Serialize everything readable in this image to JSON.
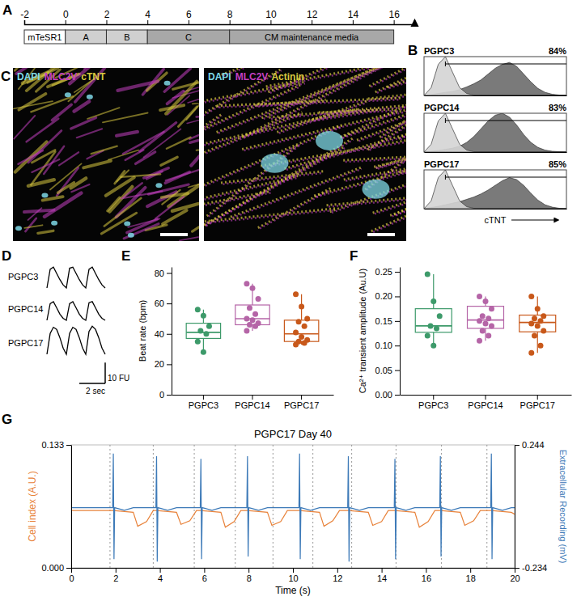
{
  "chart_data": [
    {
      "panel": "A",
      "type": "timeline",
      "xlim": [
        -2,
        17
      ],
      "xticks": [
        -2,
        0,
        2,
        4,
        6,
        8,
        10,
        12,
        14,
        16
      ],
      "segments": [
        {
          "label": "mTeSR1",
          "start": -2,
          "end": 0
        },
        {
          "label": "A",
          "start": 0,
          "end": 2
        },
        {
          "label": "B",
          "start": 2,
          "end": 4
        },
        {
          "label": "C",
          "start": 4,
          "end": 8
        },
        {
          "label": "CM maintenance media",
          "start": 8,
          "end": 16
        }
      ]
    },
    {
      "panel": "B",
      "type": "area",
      "x_label": "cTNT",
      "tick_labels": false,
      "xlim": [
        0,
        20
      ],
      "ylim": [
        0,
        100
      ],
      "x": [
        0,
        1,
        2,
        3,
        4,
        5,
        6,
        7,
        8,
        9,
        10,
        11,
        12,
        13,
        14,
        15,
        16,
        17,
        18,
        19,
        20
      ],
      "panels": [
        {
          "title": "PGPC3",
          "percent": {
            "value": 84,
            "label": "84%"
          },
          "gate": [
            3,
            20
          ],
          "series": [
            {
              "color": "#6b6b6b",
              "values": [
                0,
                2,
                5,
                8,
                10,
                15,
                22,
                30,
                40,
                55,
                70,
                80,
                85,
                75,
                55,
                35,
                18,
                8,
                3,
                1,
                0
              ]
            },
            {
              "color": "#d4d4d4",
              "values": [
                0,
                20,
                80,
                100,
                60,
                20,
                5,
                1,
                0,
                0,
                0,
                0,
                0,
                0,
                0,
                0,
                0,
                0,
                0,
                0,
                0
              ]
            }
          ]
        },
        {
          "title": "PGPC14",
          "percent": {
            "value": 83,
            "label": "83%"
          },
          "gate": [
            3,
            20
          ],
          "series": [
            {
              "color": "#6b6b6b",
              "values": [
                0,
                2,
                4,
                7,
                10,
                15,
                25,
                40,
                60,
                80,
                95,
                100,
                90,
                70,
                45,
                25,
                12,
                5,
                2,
                1,
                0
              ]
            },
            {
              "color": "#d4d4d4",
              "values": [
                0,
                20,
                80,
                100,
                60,
                20,
                5,
                1,
                0,
                0,
                0,
                0,
                0,
                0,
                0,
                0,
                0,
                0,
                0,
                0,
                0
              ]
            }
          ]
        },
        {
          "title": "PGPC17",
          "percent": {
            "value": 85,
            "label": "85%"
          },
          "gate": [
            3,
            20
          ],
          "series": [
            {
              "color": "#6b6b6b",
              "values": [
                0,
                3,
                6,
                10,
                14,
                18,
                24,
                30,
                38,
                48,
                60,
                72,
                80,
                75,
                60,
                40,
                22,
                10,
                4,
                1,
                0
              ]
            },
            {
              "color": "#d4d4d4",
              "values": [
                0,
                20,
                80,
                100,
                60,
                20,
                5,
                1,
                0,
                0,
                0,
                0,
                0,
                0,
                0,
                0,
                0,
                0,
                0,
                0,
                0
              ]
            }
          ]
        }
      ]
    },
    {
      "panel": "C",
      "type": "image",
      "images": [
        {
          "channels": [
            {
              "label": "DAPI",
              "color": "#7fd8e6"
            },
            {
              "label": "MLC2V",
              "color": "#c23fc0"
            },
            {
              "label": "cTNT",
              "color": "#d8c840"
            }
          ]
        },
        {
          "channels": [
            {
              "label": "DAPI",
              "color": "#7fd8e6"
            },
            {
              "label": "MLC2V",
              "color": "#c23fc0"
            },
            {
              "label": "Actinin",
              "color": "#d8c840"
            }
          ]
        }
      ]
    },
    {
      "panel": "D",
      "type": "line",
      "tick_labels": false,
      "xlim": [
        0,
        4.5
      ],
      "ylim": [
        0,
        14
      ],
      "x": [
        0,
        0.25,
        0.5,
        0.75,
        1,
        1.25,
        1.5,
        1.75,
        2,
        2.25,
        2.5,
        2.75,
        3,
        3.25,
        3.5,
        3.75,
        4,
        4.25,
        4.5
      ],
      "series": [
        {
          "name": "PGPC3",
          "color": "#000000",
          "values": [
            0,
            9,
            10,
            7,
            4,
            1.5,
            0,
            9.5,
            10,
            7,
            4,
            1.5,
            0,
            9,
            10,
            7,
            4,
            1.5,
            0
          ]
        },
        {
          "name": "PGPC14",
          "color": "#000000",
          "values": [
            0,
            8,
            9,
            6,
            3,
            1,
            0,
            8,
            9,
            6,
            3,
            1,
            0,
            8.5,
            9,
            6,
            3,
            1,
            0
          ]
        },
        {
          "name": "PGPC17",
          "color": "#000000",
          "values": [
            0,
            10,
            13,
            12,
            8,
            3,
            0,
            10,
            13,
            12,
            8,
            3,
            0,
            11,
            13.5,
            12,
            8,
            3,
            0
          ]
        }
      ],
      "scale_bar": {
        "x": 2,
        "x_label": "2 sec",
        "y": 10,
        "y_label": "10 FU"
      }
    },
    {
      "panel": "E",
      "type": "box",
      "y_label": "Beat rate (bpm)",
      "categories": [
        "PGPC3",
        "PGPC14",
        "PGPC17"
      ],
      "colors": [
        "#3d9a6a",
        "#b565a7",
        "#c8581a"
      ],
      "ylim": [
        0,
        84
      ],
      "yticks": [
        0,
        20,
        40,
        60,
        80
      ],
      "points": [
        [
          56,
          52,
          45,
          42,
          40,
          35,
          28
        ],
        [
          73,
          70,
          63,
          57,
          53,
          50,
          49,
          47,
          46,
          45,
          42
        ],
        [
          66,
          58,
          50,
          48,
          45,
          41,
          38,
          36,
          35,
          34,
          33
        ]
      ],
      "boxes": [
        {
          "min": 28,
          "q1": 37,
          "median": 41,
          "q3": 47,
          "max": 56
        },
        {
          "min": 42,
          "q1": 46,
          "median": 50,
          "q3": 59,
          "max": 73
        },
        {
          "min": 33,
          "q1": 35,
          "median": 40,
          "q3": 49,
          "max": 66
        }
      ]
    },
    {
      "panel": "F",
      "type": "box",
      "y_label": "Ca²⁺ transient amplitude (Au.U)",
      "categories": [
        "PGPC3",
        "PGPC14",
        "PGPC17"
      ],
      "colors": [
        "#3d9a6a",
        "#b565a7",
        "#c8581a"
      ],
      "ylim": [
        0,
        0.26
      ],
      "yticks": [
        {
          "value": 0,
          "label": "0.00"
        },
        0.05,
        {
          "value": 0.1,
          "label": "0.10"
        },
        0.15,
        {
          "value": 0.2,
          "label": "0.20"
        },
        0.25
      ],
      "points": [
        [
          0.245,
          0.19,
          0.16,
          0.14,
          0.135,
          0.12,
          0.1
        ],
        [
          0.2,
          0.19,
          0.175,
          0.16,
          0.155,
          0.15,
          0.145,
          0.14,
          0.13,
          0.12,
          0.11
        ],
        [
          0.2,
          0.175,
          0.16,
          0.155,
          0.15,
          0.145,
          0.14,
          0.13,
          0.12,
          0.1,
          0.085
        ]
      ],
      "boxes": [
        {
          "min": 0.1,
          "q1": 0.127,
          "median": 0.14,
          "q3": 0.175,
          "max": 0.245
        },
        {
          "min": 0.11,
          "q1": 0.135,
          "median": 0.152,
          "q3": 0.18,
          "max": 0.2
        },
        {
          "min": 0.085,
          "q1": 0.128,
          "median": 0.147,
          "q3": 0.162,
          "max": 0.2
        }
      ]
    },
    {
      "panel": "G",
      "type": "line",
      "title": "PGPC17 Day 40",
      "x_label": "Time (s)",
      "y_label": "Cell index (A.U.)",
      "y2_label": "Extracellular Recording (mV)",
      "xlim": [
        0,
        20
      ],
      "xticks": [
        0,
        2,
        4,
        6,
        8,
        10,
        12,
        14,
        16,
        18,
        20
      ],
      "ylim": [
        0,
        0.133
      ],
      "yticks": [
        {
          "value": 0,
          "label": "0.000"
        },
        0.133
      ],
      "y2lim": [
        -0.234,
        0.244
      ],
      "y2ticks": [
        -0.234,
        0.244
      ],
      "beat_lines": [
        1.75,
        3.7,
        5.55,
        7.4,
        9.1,
        10.9,
        12.65,
        14.65,
        16.7,
        18.75
      ],
      "series": [
        {
          "color": "#e8823a",
          "x": [
            0,
            1.9,
            2.8,
            3.0,
            3.4,
            3.7,
            3.85,
            4.75,
            4.95,
            5.35,
            5.65,
            5.85,
            6.75,
            6.95,
            7.35,
            7.65,
            7.95,
            8.85,
            9.05,
            9.45,
            9.75,
            10.3,
            11.2,
            11.4,
            11.8,
            12.1,
            12.5,
            13.4,
            13.6,
            14.0,
            14.3,
            14.6,
            15.5,
            15.7,
            16.1,
            16.4,
            16.65,
            17.55,
            17.75,
            18.15,
            18.45,
            18.95,
            19.85,
            20
          ],
          "values": [
            0.062,
            0.062,
            0.06,
            0.045,
            0.05,
            0.062,
            0.062,
            0.06,
            0.047,
            0.051,
            0.062,
            0.062,
            0.06,
            0.044,
            0.05,
            0.062,
            0.062,
            0.06,
            0.046,
            0.05,
            0.062,
            0.062,
            0.06,
            0.045,
            0.051,
            0.062,
            0.062,
            0.06,
            0.046,
            0.05,
            0.062,
            0.062,
            0.06,
            0.044,
            0.05,
            0.062,
            0.062,
            0.06,
            0.046,
            0.051,
            0.062,
            0.062,
            0.06,
            0.058
          ]
        },
        {
          "color": "#3d7ab8",
          "axis": "y2",
          "x": [
            0,
            1.87,
            1.9,
            1.93,
            1.96,
            2.4,
            2.8,
            3.82,
            3.85,
            3.88,
            3.91,
            4.35,
            4.75,
            5.82,
            5.85,
            5.88,
            5.91,
            6.35,
            6.75,
            7.92,
            7.95,
            7.98,
            8.01,
            8.45,
            8.85,
            10.27,
            10.3,
            10.33,
            10.36,
            10.8,
            11.2,
            12.47,
            12.5,
            12.53,
            12.56,
            13.0,
            13.4,
            14.57,
            14.6,
            14.63,
            14.66,
            15.1,
            15.5,
            16.62,
            16.65,
            16.68,
            16.71,
            17.15,
            17.55,
            18.92,
            18.95,
            18.98,
            19.01,
            19.45,
            19.85,
            20
          ],
          "values": [
            0,
            0,
            0.21,
            -0.2,
            0,
            -0.01,
            0,
            0,
            0.2,
            -0.21,
            0,
            -0.01,
            0,
            0,
            0.19,
            -0.2,
            0,
            -0.01,
            0,
            0,
            0.2,
            -0.19,
            0,
            -0.01,
            0,
            0,
            0.21,
            -0.2,
            0,
            -0.01,
            0,
            0,
            0.2,
            -0.21,
            0,
            -0.01,
            0,
            0,
            0.19,
            -0.2,
            0,
            -0.01,
            0,
            0,
            0.2,
            -0.19,
            0,
            -0.01,
            0,
            0,
            0.21,
            -0.2,
            0,
            -0.01,
            0,
            0
          ]
        }
      ]
    }
  ]
}
